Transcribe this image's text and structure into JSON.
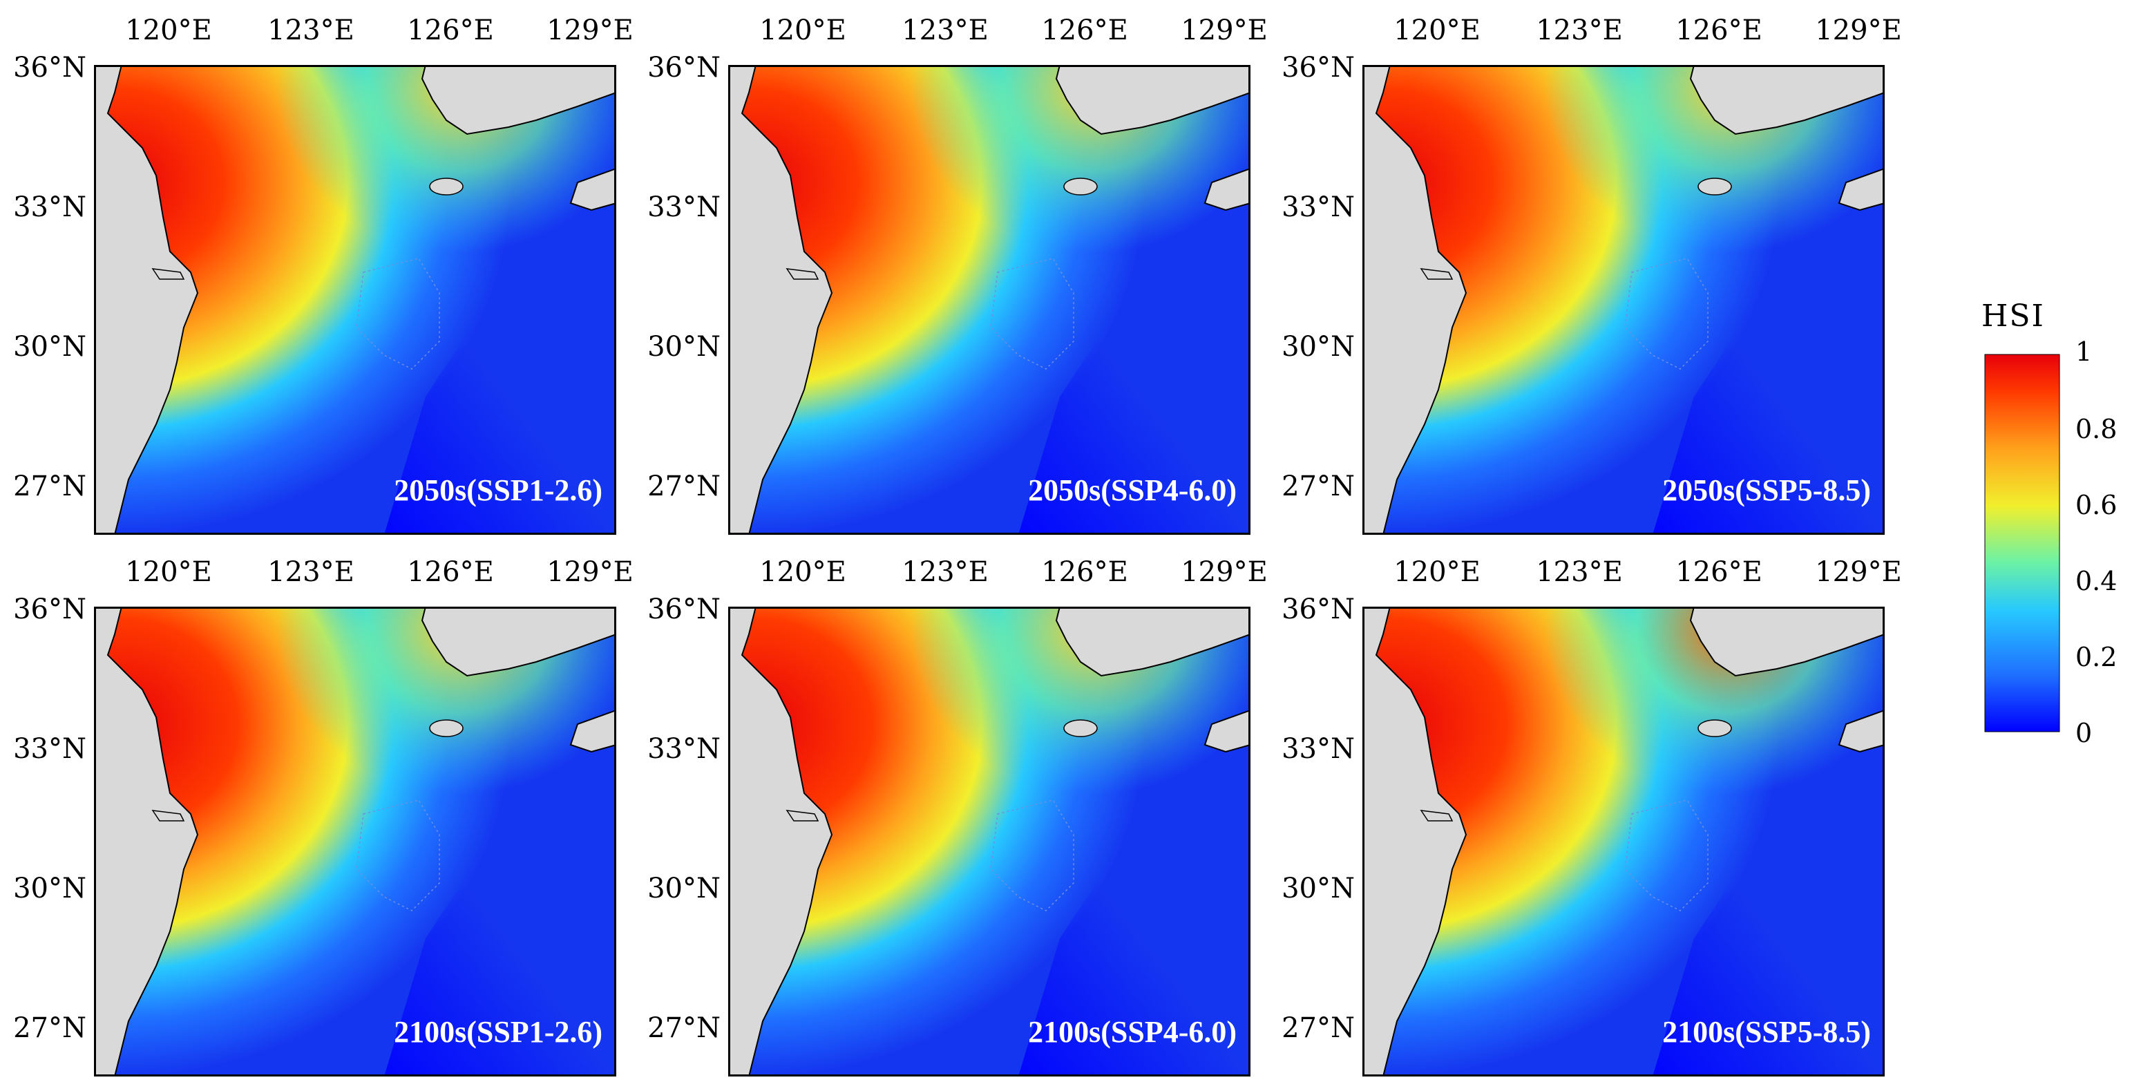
{
  "lon_ticks": [
    "120°E",
    "123°E",
    "126°E",
    "129°E"
  ],
  "lat_ticks": [
    "36°N",
    "33°N",
    "30°N",
    "27°N"
  ],
  "panels": [
    {
      "label": "2050s(SSP1-2.6)"
    },
    {
      "label": "2050s(SSP4-6.0)"
    },
    {
      "label": "2050s(SSP5-8.5)"
    },
    {
      "label": "2100s(SSP1-2.6)"
    },
    {
      "label": "2100s(SSP4-6.0)"
    },
    {
      "label": "2100s(SSP5-8.5)"
    }
  ],
  "colorbar": {
    "title": "HSI",
    "ticks": [
      "1",
      "0.8",
      "0.6",
      "0.4",
      "0.2",
      "0"
    ],
    "colors": [
      "#0000ff",
      "#1f6fff",
      "#27c8ff",
      "#6cf2a4",
      "#f2ef2d",
      "#ffa11c",
      "#ff3a00",
      "#e8000a"
    ]
  },
  "colors": {
    "land": "#d9d9d9",
    "ocean_low": "#1536f0",
    "coast_high": "#ff3d10"
  }
}
